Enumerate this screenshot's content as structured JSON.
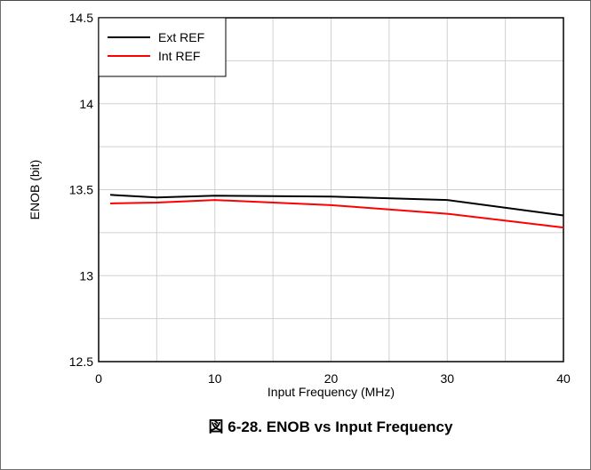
{
  "caption": "図 6-28. ENOB vs Input Frequency",
  "chart_data": {
    "type": "line",
    "title": "",
    "xlabel": "Input Frequency (MHz)",
    "ylabel": "ENOB (bit)",
    "xlim": [
      0,
      40
    ],
    "ylim": [
      12.5,
      14.5
    ],
    "x_ticks": [
      0,
      10,
      20,
      30,
      40
    ],
    "y_ticks": [
      12.5,
      13,
      13.5,
      14,
      14.5
    ],
    "x_tick_labels": [
      "0",
      "10",
      "20",
      "30",
      "40"
    ],
    "y_tick_labels": [
      "12.5",
      "13",
      "13.5",
      "14",
      "14.5"
    ],
    "grid": true,
    "legend_position": "top-left",
    "series": [
      {
        "name": "Ext REF",
        "color": "#000000",
        "x": [
          1,
          5,
          10,
          20,
          30,
          40
        ],
        "y": [
          13.47,
          13.455,
          13.465,
          13.46,
          13.44,
          13.35
        ]
      },
      {
        "name": "Int REF",
        "color": "#ff0000",
        "x": [
          1,
          5,
          10,
          20,
          30,
          40
        ],
        "y": [
          13.42,
          13.425,
          13.44,
          13.41,
          13.36,
          13.28
        ]
      }
    ]
  }
}
